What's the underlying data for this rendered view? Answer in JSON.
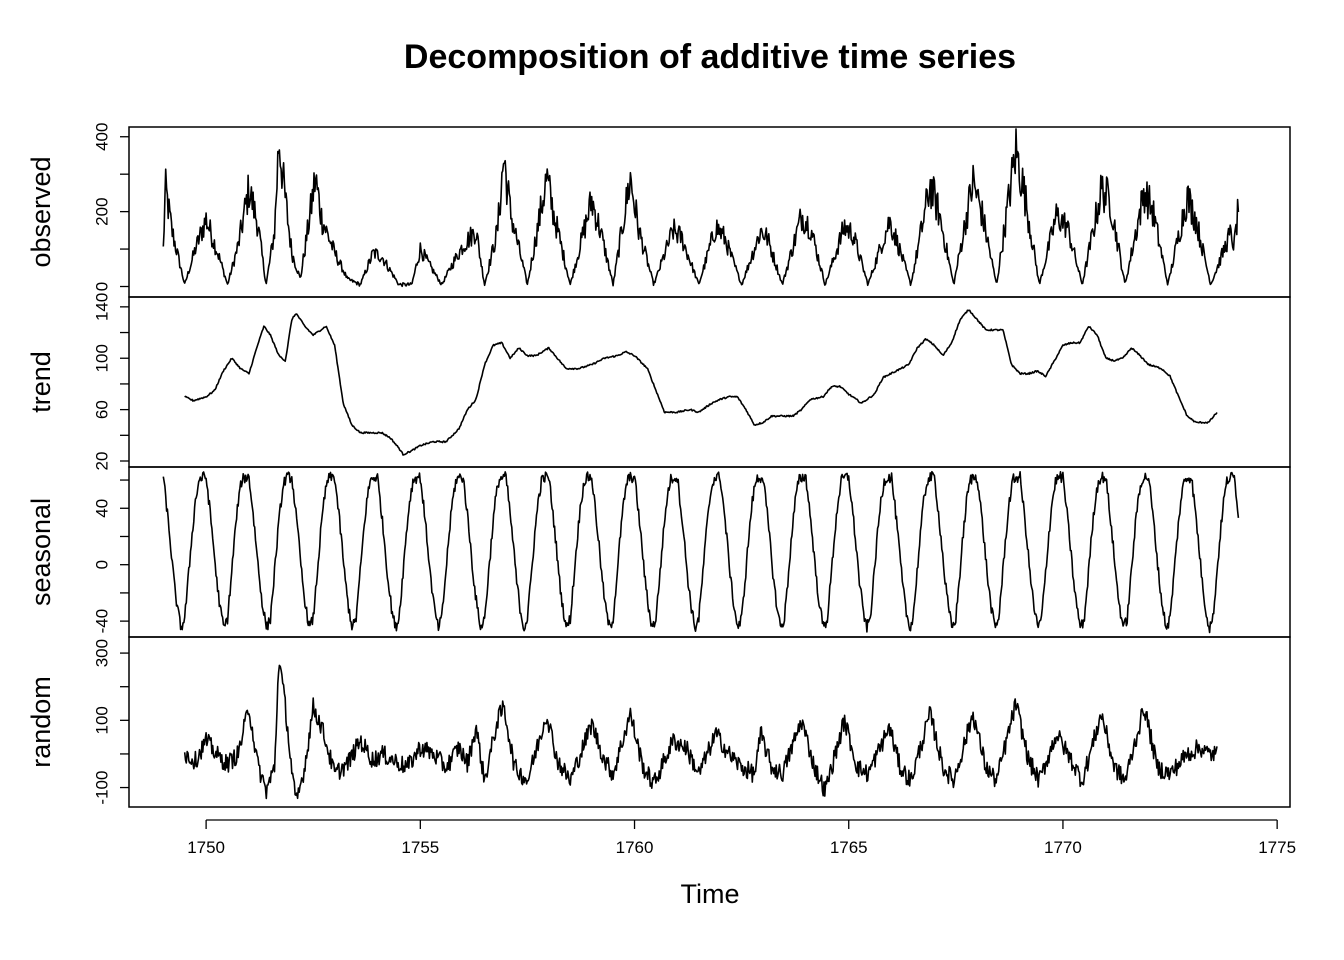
{
  "chart_data": {
    "type": "line",
    "title": "Decomposition of additive time series",
    "xlabel": "Time",
    "xlim": [
      1748.2,
      1775.3
    ],
    "x_ticks": [
      1750,
      1755,
      1760,
      1765,
      1770,
      1775
    ],
    "x_tick_labels": [
      "1750",
      "1755",
      "1760",
      "1765",
      "1770",
      "1775"
    ],
    "frequency": 12,
    "panels": [
      {
        "name": "observed",
        "ylabel": "observed",
        "ylim": [
          -12,
          410
        ],
        "ticks": [
          0,
          200,
          400
        ],
        "tick_labels": [
          "0",
          "200",
          "400"
        ],
        "minor_ticks": [
          100,
          300
        ],
        "start": 1749.0,
        "end": 1774.1,
        "anchors": [
          [
            1749.0,
            100
          ],
          [
            1749.05,
            262
          ],
          [
            1749.2,
            150
          ],
          [
            1749.5,
            5
          ],
          [
            1749.75,
            100
          ],
          [
            1750.0,
            180
          ],
          [
            1750.3,
            80
          ],
          [
            1750.5,
            5
          ],
          [
            1750.75,
            110
          ],
          [
            1751.0,
            260
          ],
          [
            1751.2,
            170
          ],
          [
            1751.4,
            5
          ],
          [
            1751.6,
            150
          ],
          [
            1751.7,
            400
          ],
          [
            1751.8,
            280
          ],
          [
            1752.0,
            90
          ],
          [
            1752.2,
            20
          ],
          [
            1752.45,
            210
          ],
          [
            1752.55,
            290
          ],
          [
            1752.7,
            180
          ],
          [
            1753.0,
            90
          ],
          [
            1753.3,
            20
          ],
          [
            1753.6,
            5
          ],
          [
            1753.9,
            90
          ],
          [
            1754.1,
            80
          ],
          [
            1754.5,
            5
          ],
          [
            1754.8,
            5
          ],
          [
            1755.0,
            100
          ],
          [
            1755.2,
            60
          ],
          [
            1755.5,
            5
          ],
          [
            1755.75,
            60
          ],
          [
            1756.0,
            110
          ],
          [
            1756.3,
            150
          ],
          [
            1756.5,
            5
          ],
          [
            1756.8,
            150
          ],
          [
            1756.95,
            345
          ],
          [
            1757.1,
            200
          ],
          [
            1757.5,
            5
          ],
          [
            1757.95,
            290
          ],
          [
            1758.1,
            200
          ],
          [
            1758.5,
            5
          ],
          [
            1759.0,
            230
          ],
          [
            1759.2,
            150
          ],
          [
            1759.5,
            5
          ],
          [
            1759.9,
            290
          ],
          [
            1760.1,
            150
          ],
          [
            1760.45,
            5
          ],
          [
            1760.9,
            150
          ],
          [
            1761.1,
            130
          ],
          [
            1761.5,
            5
          ],
          [
            1761.9,
            160
          ],
          [
            1762.1,
            130
          ],
          [
            1762.5,
            5
          ],
          [
            1762.95,
            150
          ],
          [
            1763.1,
            130
          ],
          [
            1763.45,
            5
          ],
          [
            1763.9,
            190
          ],
          [
            1764.1,
            160
          ],
          [
            1764.45,
            5
          ],
          [
            1764.9,
            160
          ],
          [
            1765.1,
            140
          ],
          [
            1765.45,
            5
          ],
          [
            1765.95,
            175
          ],
          [
            1766.1,
            130
          ],
          [
            1766.45,
            5
          ],
          [
            1766.9,
            270
          ],
          [
            1767.1,
            200
          ],
          [
            1767.45,
            5
          ],
          [
            1767.9,
            280
          ],
          [
            1768.1,
            200
          ],
          [
            1768.45,
            5
          ],
          [
            1768.9,
            365
          ],
          [
            1769.1,
            250
          ],
          [
            1769.45,
            5
          ],
          [
            1769.85,
            190
          ],
          [
            1770.1,
            160
          ],
          [
            1770.45,
            5
          ],
          [
            1770.9,
            260
          ],
          [
            1771.1,
            230
          ],
          [
            1771.45,
            5
          ],
          [
            1771.9,
            255
          ],
          [
            1772.1,
            200
          ],
          [
            1772.45,
            5
          ],
          [
            1772.9,
            240
          ],
          [
            1773.1,
            180
          ],
          [
            1773.45,
            5
          ],
          [
            1773.9,
            140
          ],
          [
            1774.0,
            110
          ],
          [
            1774.1,
            215
          ]
        ]
      },
      {
        "name": "trend",
        "ylabel": "trend",
        "ylim": [
          20,
          143
        ],
        "ticks": [
          20,
          60,
          100,
          140
        ],
        "tick_labels": [
          "20",
          "60",
          "100",
          "140"
        ],
        "minor_ticks": [
          40,
          80,
          120
        ],
        "start": 1749.5,
        "end": 1773.6,
        "anchors": [
          [
            1749.5,
            70
          ],
          [
            1749.7,
            67
          ],
          [
            1750.0,
            70
          ],
          [
            1750.2,
            75
          ],
          [
            1750.4,
            90
          ],
          [
            1750.6,
            100
          ],
          [
            1750.8,
            92
          ],
          [
            1751.0,
            88
          ],
          [
            1751.2,
            110
          ],
          [
            1751.35,
            125
          ],
          [
            1751.5,
            118
          ],
          [
            1751.7,
            102
          ],
          [
            1751.85,
            98
          ],
          [
            1752.0,
            130
          ],
          [
            1752.1,
            135
          ],
          [
            1752.3,
            125
          ],
          [
            1752.5,
            118
          ],
          [
            1752.8,
            125
          ],
          [
            1753.0,
            110
          ],
          [
            1753.2,
            65
          ],
          [
            1753.4,
            48
          ],
          [
            1753.6,
            42
          ],
          [
            1753.9,
            42
          ],
          [
            1754.1,
            42
          ],
          [
            1754.3,
            38
          ],
          [
            1754.5,
            30
          ],
          [
            1754.6,
            25
          ],
          [
            1754.8,
            28
          ],
          [
            1755.0,
            32
          ],
          [
            1755.3,
            35
          ],
          [
            1755.6,
            35
          ],
          [
            1755.9,
            45
          ],
          [
            1756.1,
            60
          ],
          [
            1756.3,
            68
          ],
          [
            1756.5,
            95
          ],
          [
            1756.7,
            110
          ],
          [
            1756.9,
            112
          ],
          [
            1757.1,
            100
          ],
          [
            1757.3,
            108
          ],
          [
            1757.5,
            102
          ],
          [
            1757.7,
            102
          ],
          [
            1758.0,
            108
          ],
          [
            1758.2,
            100
          ],
          [
            1758.4,
            92
          ],
          [
            1758.7,
            92
          ],
          [
            1759.0,
            95
          ],
          [
            1759.3,
            100
          ],
          [
            1759.6,
            102
          ],
          [
            1759.8,
            105
          ],
          [
            1760.0,
            102
          ],
          [
            1760.3,
            92
          ],
          [
            1760.5,
            75
          ],
          [
            1760.7,
            58
          ],
          [
            1761.0,
            58
          ],
          [
            1761.3,
            60
          ],
          [
            1761.5,
            58
          ],
          [
            1761.8,
            65
          ],
          [
            1762.0,
            68
          ],
          [
            1762.2,
            70
          ],
          [
            1762.4,
            70
          ],
          [
            1762.6,
            60
          ],
          [
            1762.8,
            48
          ],
          [
            1763.0,
            50
          ],
          [
            1763.2,
            55
          ],
          [
            1763.5,
            55
          ],
          [
            1763.7,
            55
          ],
          [
            1763.9,
            60
          ],
          [
            1764.1,
            68
          ],
          [
            1764.4,
            70
          ],
          [
            1764.6,
            78
          ],
          [
            1764.8,
            78
          ],
          [
            1765.0,
            72
          ],
          [
            1765.3,
            65
          ],
          [
            1765.6,
            72
          ],
          [
            1765.8,
            85
          ],
          [
            1766.1,
            90
          ],
          [
            1766.4,
            95
          ],
          [
            1766.6,
            108
          ],
          [
            1766.8,
            115
          ],
          [
            1767.0,
            110
          ],
          [
            1767.2,
            102
          ],
          [
            1767.4,
            112
          ],
          [
            1767.6,
            130
          ],
          [
            1767.8,
            138
          ],
          [
            1768.0,
            130
          ],
          [
            1768.2,
            122
          ],
          [
            1768.6,
            122
          ],
          [
            1768.8,
            95
          ],
          [
            1769.0,
            88
          ],
          [
            1769.2,
            88
          ],
          [
            1769.4,
            90
          ],
          [
            1769.6,
            86
          ],
          [
            1769.8,
            98
          ],
          [
            1770.0,
            110
          ],
          [
            1770.2,
            112
          ],
          [
            1770.4,
            112
          ],
          [
            1770.6,
            125
          ],
          [
            1770.8,
            118
          ],
          [
            1771.0,
            100
          ],
          [
            1771.2,
            98
          ],
          [
            1771.4,
            100
          ],
          [
            1771.6,
            108
          ],
          [
            1771.8,
            102
          ],
          [
            1772.0,
            95
          ],
          [
            1772.3,
            92
          ],
          [
            1772.5,
            86
          ],
          [
            1772.7,
            70
          ],
          [
            1772.9,
            55
          ],
          [
            1773.1,
            50
          ],
          [
            1773.4,
            50
          ],
          [
            1773.6,
            58
          ]
        ]
      },
      {
        "name": "seasonal",
        "ylabel": "seasonal",
        "ylim": [
          -47,
          65
        ],
        "ticks": [
          -40,
          0,
          40
        ],
        "tick_labels": [
          "-40",
          "0",
          "40"
        ],
        "minor_ticks": [
          -20,
          20,
          60
        ],
        "start": 1749.0,
        "end": 1774.1,
        "pattern": [
          62,
          40,
          15,
          -12,
          -32,
          -45,
          -38,
          -10,
          20,
          45,
          60,
          62
        ]
      },
      {
        "name": "random",
        "ylabel": "random",
        "ylim": [
          -140,
          330
        ],
        "ticks": [
          -100,
          100,
          300
        ],
        "tick_labels": [
          "-100",
          "100",
          "300"
        ],
        "minor_ticks": [
          0,
          200
        ],
        "start": 1749.5,
        "end": 1773.6,
        "anchors": [
          [
            1749.5,
            0
          ],
          [
            1749.75,
            -20
          ],
          [
            1750.0,
            40
          ],
          [
            1750.3,
            -10
          ],
          [
            1750.5,
            -30
          ],
          [
            1750.75,
            0
          ],
          [
            1751.0,
            140
          ],
          [
            1751.2,
            -30
          ],
          [
            1751.4,
            -110
          ],
          [
            1751.6,
            -40
          ],
          [
            1751.7,
            290
          ],
          [
            1751.85,
            140
          ],
          [
            1752.0,
            -50
          ],
          [
            1752.1,
            -150
          ],
          [
            1752.3,
            -40
          ],
          [
            1752.5,
            140
          ],
          [
            1752.7,
            80
          ],
          [
            1753.0,
            -60
          ],
          [
            1753.3,
            -30
          ],
          [
            1753.6,
            40
          ],
          [
            1753.9,
            -20
          ],
          [
            1754.1,
            0
          ],
          [
            1754.4,
            -20
          ],
          [
            1754.7,
            -40
          ],
          [
            1755.0,
            20
          ],
          [
            1755.3,
            0
          ],
          [
            1755.6,
            -40
          ],
          [
            1755.9,
            20
          ],
          [
            1756.1,
            -30
          ],
          [
            1756.3,
            80
          ],
          [
            1756.5,
            -80
          ],
          [
            1756.8,
            100
          ],
          [
            1756.95,
            140
          ],
          [
            1757.2,
            -40
          ],
          [
            1757.5,
            -80
          ],
          [
            1757.95,
            120
          ],
          [
            1758.2,
            -20
          ],
          [
            1758.5,
            -80
          ],
          [
            1759.0,
            90
          ],
          [
            1759.3,
            -20
          ],
          [
            1759.5,
            -60
          ],
          [
            1759.9,
            120
          ],
          [
            1760.2,
            -40
          ],
          [
            1760.45,
            -90
          ],
          [
            1760.9,
            40
          ],
          [
            1761.2,
            20
          ],
          [
            1761.5,
            -60
          ],
          [
            1761.9,
            60
          ],
          [
            1762.2,
            0
          ],
          [
            1762.5,
            -40
          ],
          [
            1762.8,
            -60
          ],
          [
            1762.95,
            60
          ],
          [
            1763.2,
            -40
          ],
          [
            1763.45,
            -60
          ],
          [
            1763.9,
            100
          ],
          [
            1764.2,
            -40
          ],
          [
            1764.45,
            -110
          ],
          [
            1764.9,
            100
          ],
          [
            1765.2,
            -40
          ],
          [
            1765.45,
            -60
          ],
          [
            1765.95,
            80
          ],
          [
            1766.2,
            -40
          ],
          [
            1766.45,
            -80
          ],
          [
            1766.9,
            120
          ],
          [
            1767.2,
            -40
          ],
          [
            1767.45,
            -80
          ],
          [
            1767.9,
            120
          ],
          [
            1768.2,
            -40
          ],
          [
            1768.45,
            -80
          ],
          [
            1768.9,
            150
          ],
          [
            1769.2,
            -20
          ],
          [
            1769.45,
            -80
          ],
          [
            1769.85,
            60
          ],
          [
            1770.2,
            -20
          ],
          [
            1770.45,
            -80
          ],
          [
            1770.9,
            120
          ],
          [
            1771.2,
            -40
          ],
          [
            1771.45,
            -80
          ],
          [
            1771.9,
            140
          ],
          [
            1772.2,
            -40
          ],
          [
            1772.5,
            -60
          ],
          [
            1772.9,
            0
          ],
          [
            1773.2,
            20
          ],
          [
            1773.4,
            0
          ],
          [
            1773.6,
            0
          ]
        ]
      }
    ]
  }
}
